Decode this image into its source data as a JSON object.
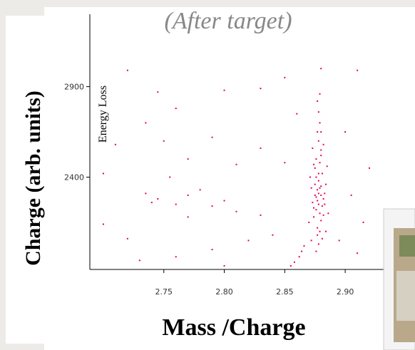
{
  "chart_data": {
    "type": "scatter",
    "title": "(After target)",
    "y_label": "Charge (arb. units)",
    "y_sublabel": "Energy Loss",
    "x_label": "Mass /Charge",
    "color": "#e6005c",
    "xlim": [
      2.69,
      2.93
    ],
    "xticks": [
      {
        "value": 2.75,
        "label": "2.75"
      },
      {
        "value": 2.8,
        "label": "2.80"
      },
      {
        "value": 2.85,
        "label": "2.85"
      },
      {
        "value": 2.9,
        "label": "2.90"
      }
    ],
    "ylim": [
      1890,
      3300
    ],
    "yticks": [
      2400,
      2900
    ],
    "x": [
      2.875,
      2.878,
      2.88,
      2.876,
      2.879,
      2.882,
      2.874,
      2.877,
      2.881,
      2.873,
      2.878,
      2.88,
      2.876,
      2.883,
      2.875,
      2.879,
      2.877,
      2.881,
      2.872,
      2.884,
      2.876,
      2.878,
      2.879,
      2.874,
      2.882,
      2.877,
      2.88,
      2.875,
      2.883,
      2.878,
      2.876,
      2.88,
      2.874,
      2.879,
      2.877,
      2.881,
      2.878,
      2.876,
      2.88,
      2.878,
      2.877,
      2.879,
      2.878,
      2.877,
      2.879,
      2.88,
      2.882,
      2.873,
      2.885,
      2.871,
      2.886,
      2.87,
      2.872,
      2.884,
      2.866,
      2.862,
      2.858,
      2.855,
      2.864,
      2.735,
      2.745,
      2.76,
      2.77,
      2.79,
      2.8,
      2.81,
      2.755,
      2.77,
      2.7,
      2.72,
      2.74,
      2.78,
      2.83,
      2.84,
      2.82,
      2.79,
      2.76,
      2.73,
      2.8,
      2.85,
      2.83,
      2.79,
      2.76,
      2.8,
      2.745,
      2.72,
      2.85,
      2.88,
      2.91,
      2.9,
      2.92,
      2.905,
      2.915,
      2.895,
      2.91,
      2.7,
      2.71,
      2.735,
      2.86,
      2.83,
      2.77,
      2.81,
      2.75
    ],
    "y": [
      2300,
      2250,
      2350,
      2400,
      2200,
      2280,
      2180,
      2330,
      2420,
      2260,
      2380,
      2160,
      2220,
      2310,
      2450,
      2480,
      2120,
      2240,
      2340,
      2360,
      2290,
      2310,
      2340,
      2230,
      2190,
      2270,
      2300,
      2360,
      2250,
      2420,
      2500,
      2520,
      2470,
      2100,
      2080,
      2060,
      2030,
      1990,
      2550,
      2600,
      2650,
      2700,
      2760,
      2820,
      2860,
      2650,
      2580,
      2560,
      2460,
      2400,
      2200,
      2150,
      2050,
      2100,
      2020,
      1960,
      1930,
      1910,
      1990,
      2310,
      2280,
      2250,
      2300,
      2240,
      2270,
      2210,
      2400,
      2180,
      2140,
      2060,
      2260,
      2330,
      2190,
      2080,
      2050,
      2000,
      1960,
      1940,
      1910,
      2480,
      2560,
      2620,
      2780,
      2880,
      2870,
      2990,
      2950,
      3000,
      2990,
      2650,
      2450,
      2300,
      2150,
      2050,
      1980,
      2420,
      2580,
      2700,
      2750,
      2890,
      2500,
      2470,
      2600
    ]
  }
}
